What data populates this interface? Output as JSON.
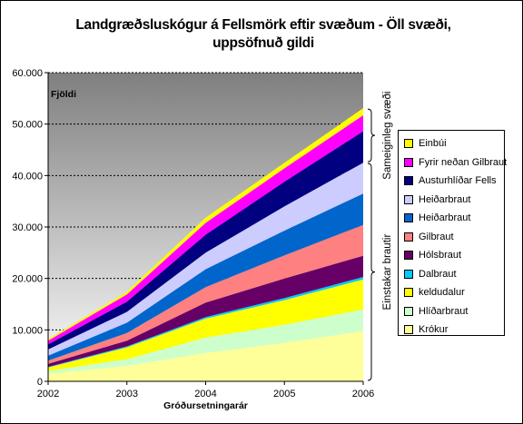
{
  "title": "Landgræðsluskógur á Fellsmörk eftir svæðum - Öll svæði, uppsöfnuð gildi",
  "colors": {
    "plot_gradient_top": "#7f7f7f",
    "plot_gradient_bottom": "#ffffff",
    "gridline": "#000000",
    "axis": "#000000"
  },
  "chart_data": {
    "type": "area",
    "stacked": true,
    "title": "Landgræðsluskógur á Fellsmörk eftir svæðum - Öll svæði, uppsöfnuð gildi",
    "xlabel": "Gróðursetningarár",
    "ylabel": "Fjöldi",
    "x": [
      "2002",
      "2003",
      "2004",
      "2005",
      "2006"
    ],
    "ylim": [
      0,
      60000
    ],
    "yticks": [
      0,
      10000,
      20000,
      30000,
      40000,
      50000,
      60000
    ],
    "ytick_labels": [
      "0",
      "10.000",
      "20.000",
      "30.000",
      "40.000",
      "50.000",
      "60.000"
    ],
    "grid": true,
    "legend_position": "right",
    "series": [
      {
        "name": "Krókur",
        "color": "#ffff99",
        "values": [
          1500,
          3000,
          5500,
          7500,
          9800
        ]
      },
      {
        "name": "Hlíðarbraut",
        "color": "#ccffcc",
        "values": [
          500,
          1300,
          3000,
          3500,
          4200
        ]
      },
      {
        "name": "keldudalur",
        "color": "#ffff00",
        "values": [
          700,
          2300,
          3700,
          4800,
          5800
        ]
      },
      {
        "name": "Dalbraut",
        "color": "#00ccff",
        "values": [
          100,
          200,
          300,
          400,
          500
        ]
      },
      {
        "name": "Hólsbraut",
        "color": "#660066",
        "values": [
          600,
          1100,
          2800,
          3800,
          4100
        ]
      },
      {
        "name": "Gilbraut",
        "color": "#ff8080",
        "values": [
          600,
          1500,
          3000,
          4500,
          6000
        ]
      },
      {
        "name": "Heiðarbraut",
        "color": "#0066cc",
        "values": [
          1000,
          2000,
          3500,
          4800,
          6100
        ]
      },
      {
        "name": "Heiðarbraut",
        "color": "#ccccff",
        "values": [
          1200,
          2100,
          3200,
          4700,
          6000
        ]
      },
      {
        "name": "Austurhlíðar Fells",
        "color": "#000080",
        "values": [
          1000,
          2000,
          3500,
          4800,
          6100
        ]
      },
      {
        "name": "Fyrir neðan Gilbraut",
        "color": "#ff00ff",
        "values": [
          700,
          1400,
          2300,
          2600,
          3100
        ]
      },
      {
        "name": "Einbúi",
        "color": "#ffff00",
        "values": [
          300,
          500,
          1000,
          1100,
          1400
        ]
      }
    ],
    "brackets": [
      {
        "label": "Sameiginleg svæði",
        "series_range": [
          "Austurhlíðar Fells",
          "Einbúi"
        ]
      },
      {
        "label": "Einstakar brautir",
        "series_range": [
          "Krókur",
          "Heiðarbraut"
        ]
      }
    ]
  }
}
